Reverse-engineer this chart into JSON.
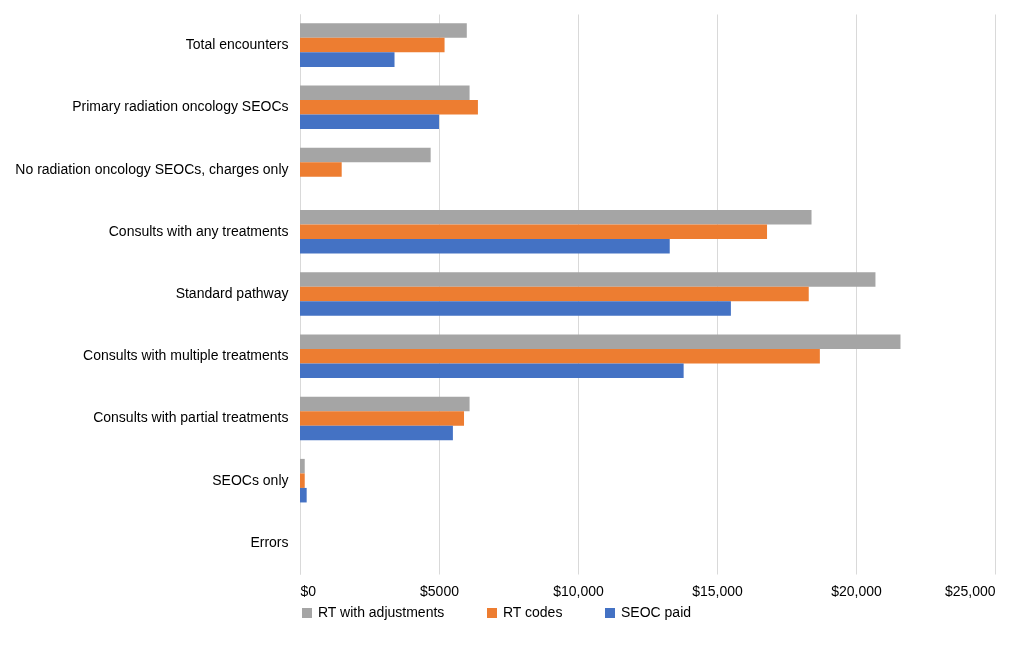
{
  "chart_data": {
    "type": "bar",
    "orientation": "horizontal",
    "categories": [
      "Total encounters",
      "Primary radiation oncology SEOCs",
      "No radiation oncology SEOCs, charges only",
      "Consults with any treatments",
      "Standard pathway",
      "Consults with multiple treatments",
      "Consults with partial treatments",
      "SEOCs only",
      "Errors"
    ],
    "series": [
      {
        "name": "RT with adjustments",
        "color": "#a5a5a5",
        "values": [
          6000,
          6100,
          4700,
          18400,
          20700,
          21600,
          6100,
          170,
          0
        ]
      },
      {
        "name": "RT codes",
        "color": "#ed7d31",
        "values": [
          5200,
          6400,
          1500,
          16800,
          18300,
          18700,
          5900,
          170,
          0
        ]
      },
      {
        "name": "SEOC paid",
        "color": "#4472c4",
        "values": [
          3400,
          5000,
          null,
          13300,
          15500,
          13800,
          5500,
          240,
          0
        ]
      }
    ],
    "xlim": [
      0,
      25000
    ],
    "xticks": [
      {
        "value": 0,
        "label": "$0"
      },
      {
        "value": 5000,
        "label": "$5000"
      },
      {
        "value": 10000,
        "label": "$10,000"
      },
      {
        "value": 15000,
        "label": "$15,000"
      },
      {
        "value": 20000,
        "label": "$20,000"
      },
      {
        "value": 25000,
        "label": "$25,000"
      }
    ],
    "grid": "x",
    "legend": "bottom"
  }
}
